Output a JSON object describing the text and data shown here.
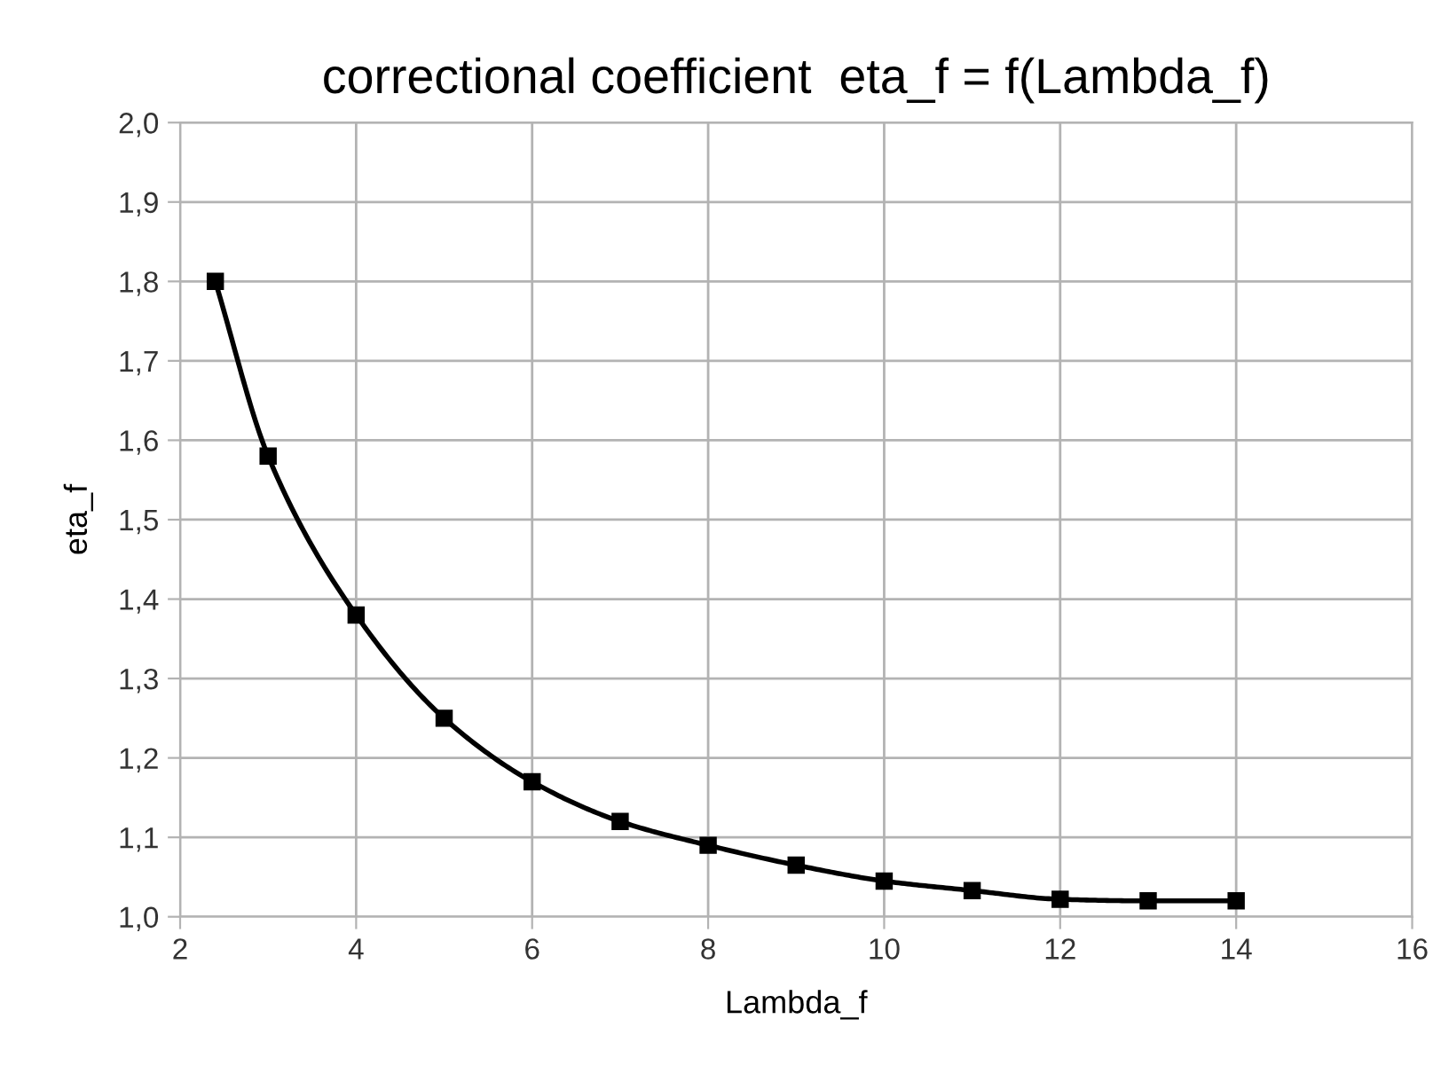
{
  "chart_data": {
    "type": "line",
    "title": "correctional coefficient  eta_f = f(Lambda_f)",
    "xlabel": "Lambda_f",
    "ylabel": "eta_f",
    "x": [
      2.4,
      3,
      4,
      5,
      6,
      7,
      8,
      9,
      10,
      11,
      12,
      13,
      14
    ],
    "series": [
      {
        "color": "#000000",
        "values": [
          1.8,
          1.58,
          1.38,
          1.25,
          1.17,
          1.12,
          1.09,
          1.065,
          1.045,
          1.033,
          1.022,
          1.02,
          1.02
        ]
      }
    ],
    "xlim": [
      2,
      16
    ],
    "xticks": [
      2,
      4,
      6,
      8,
      10,
      12,
      14,
      16
    ],
    "ylim": [
      1.0,
      2.0
    ],
    "yticks": [
      {
        "value": 1.0,
        "label": "1,0"
      },
      {
        "value": 1.1,
        "label": "1,1"
      },
      {
        "value": 1.2,
        "label": "1,2"
      },
      {
        "value": 1.3,
        "label": "1,3"
      },
      {
        "value": 1.4,
        "label": "1,4"
      },
      {
        "value": 1.5,
        "label": "1,5"
      },
      {
        "value": 1.6,
        "label": "1,6"
      },
      {
        "value": 1.7,
        "label": "1,7"
      },
      {
        "value": 1.8,
        "label": "1,8"
      },
      {
        "value": 1.9,
        "label": "1,9"
      },
      {
        "value": 2.0,
        "label": "2,0"
      }
    ],
    "grid": true,
    "marker": "square",
    "line_style": "solid"
  }
}
